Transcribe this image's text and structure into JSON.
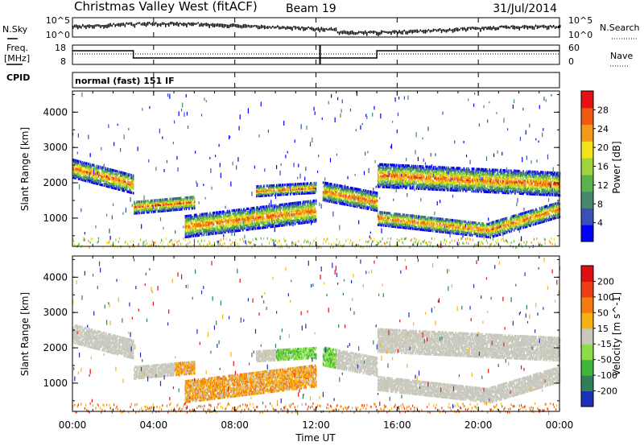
{
  "header": {
    "station": "Christmas Valley West (fitACF)",
    "beam": "Beam 19",
    "date": "31/Jul/2014"
  },
  "strips": {
    "nsky_label": "N.Sky",
    "nsky_ticks": [
      "10^5",
      "10^0"
    ],
    "nsearch_label": "N.Search",
    "nsearch_ticks": [
      "10^5",
      "10^0"
    ],
    "freq_label": "Freq.",
    "freq_unit": "[MHz]",
    "freq_ticks": [
      "18",
      "8"
    ],
    "nave_label": "Nave",
    "nave_ticks": [
      "60",
      "0"
    ],
    "cpid_label": "CPID",
    "cpid_value": "normal (fast) 151 IF"
  },
  "chart_data": [
    {
      "type": "heatmap",
      "name": "power",
      "ylabel": "Slant Range [km]",
      "ylim": [
        200,
        4600
      ],
      "yticks": [
        "4000",
        "3000",
        "2000",
        "1000"
      ],
      "colorbar_label": "Power [dB]",
      "colorbar_ticks": [
        "28",
        "24",
        "20",
        "16",
        "12",
        "8",
        "4"
      ],
      "colors": [
        "#0000ff",
        "#3a4fb8",
        "#46886e",
        "#5ab34a",
        "#9fd43a",
        "#f2e21a",
        "#f29a1a",
        "#ee5a12",
        "#e81010"
      ]
    },
    {
      "type": "heatmap",
      "name": "velocity",
      "ylabel": "Slant Range [km]",
      "ylim": [
        200,
        4600
      ],
      "yticks": [
        "4000",
        "3000",
        "2000",
        "1000"
      ],
      "colorbar_label": "Velocity [m s^-1]",
      "colorbar_ticks": [
        "200",
        "100",
        "50",
        "15",
        "-15",
        "-50",
        "-100",
        "-200"
      ],
      "colors": [
        "#1d2fb8",
        "#2f7f5a",
        "#3fb73a",
        "#8ddc4a",
        "#c8c8bd",
        "#f5b312",
        "#f57a10",
        "#ee3d12",
        "#e00f0f"
      ]
    }
  ],
  "xaxis": {
    "label": "Time UT",
    "ticks": [
      "00:00",
      "04:00",
      "08:00",
      "12:00",
      "16:00",
      "20:00",
      "00:00"
    ]
  }
}
